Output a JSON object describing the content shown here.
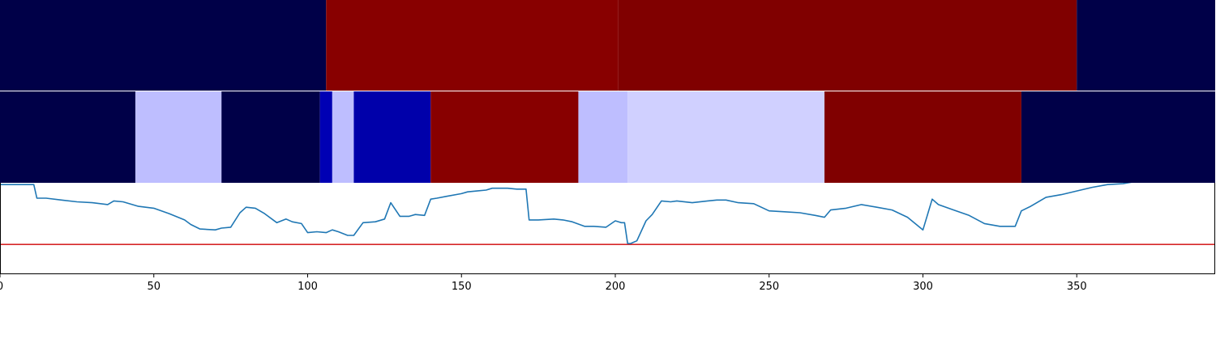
{
  "chart_data": {
    "type": "heatmap",
    "title": "",
    "xlabel": "",
    "ylabel": "",
    "xlim": [
      0,
      395
    ],
    "xticks": [
      0,
      50,
      100,
      150,
      200,
      250,
      300,
      350
    ],
    "xtick_labels": [
      "0",
      "50",
      "100",
      "150",
      "200",
      "250",
      "300",
      "350"
    ],
    "grid": false,
    "rows": [
      {
        "segments": [
          {
            "start": 0,
            "end": 106,
            "color": "#000048"
          },
          {
            "start": 106,
            "end": 201,
            "color": "#880000"
          },
          {
            "start": 201,
            "end": 350,
            "color": "#800000"
          },
          {
            "start": 350,
            "end": 395,
            "color": "#000048"
          }
        ]
      },
      {
        "segments": [
          {
            "start": 0,
            "end": 44,
            "color": "#000048"
          },
          {
            "start": 44,
            "end": 72,
            "color": "#bebeff"
          },
          {
            "start": 72,
            "end": 104,
            "color": "#000048"
          },
          {
            "start": 104,
            "end": 108,
            "color": "#0000b4"
          },
          {
            "start": 108,
            "end": 115,
            "color": "#bebeff"
          },
          {
            "start": 115,
            "end": 140,
            "color": "#0000aa"
          },
          {
            "start": 140,
            "end": 188,
            "color": "#880000"
          },
          {
            "start": 188,
            "end": 204,
            "color": "#bebeff"
          },
          {
            "start": 204,
            "end": 268,
            "color": "#d0d0ff"
          },
          {
            "start": 268,
            "end": 332,
            "color": "#800000"
          },
          {
            "start": 332,
            "end": 395,
            "color": "#000048"
          }
        ]
      }
    ],
    "series": [
      {
        "color": "#1f77b4",
        "x": [
          0,
          5,
          11,
          12,
          15,
          20,
          25,
          30,
          35,
          37,
          40,
          45,
          50,
          55,
          60,
          62,
          65,
          70,
          72,
          75,
          78,
          80,
          83,
          86,
          90,
          93,
          95,
          98,
          100,
          103,
          106,
          108,
          110,
          113,
          115,
          118,
          122,
          125,
          127,
          130,
          133,
          135,
          138,
          140,
          142,
          145,
          150,
          152,
          155,
          158,
          160,
          165,
          168,
          171,
          172,
          175,
          180,
          183,
          186,
          190,
          193,
          197,
          200,
          202,
          203,
          204,
          205,
          207,
          210,
          212,
          215,
          218,
          220,
          225,
          230,
          233,
          236,
          240,
          245,
          250,
          255,
          260,
          265,
          268,
          270,
          275,
          280,
          285,
          290,
          295,
          300,
          303,
          305,
          310,
          315,
          320,
          325,
          330,
          332,
          335,
          340,
          345,
          350,
          355,
          360,
          365,
          370,
          375,
          380,
          385,
          390,
          395
        ],
        "y": [
          0.98,
          0.98,
          0.98,
          0.83,
          0.83,
          0.81,
          0.79,
          0.78,
          0.76,
          0.8,
          0.79,
          0.74,
          0.72,
          0.66,
          0.59,
          0.54,
          0.49,
          0.48,
          0.5,
          0.51,
          0.67,
          0.73,
          0.72,
          0.66,
          0.56,
          0.6,
          0.57,
          0.55,
          0.45,
          0.46,
          0.45,
          0.48,
          0.46,
          0.42,
          0.42,
          0.56,
          0.57,
          0.6,
          0.78,
          0.63,
          0.63,
          0.65,
          0.64,
          0.82,
          0.83,
          0.85,
          0.88,
          0.9,
          0.91,
          0.92,
          0.94,
          0.94,
          0.93,
          0.93,
          0.59,
          0.59,
          0.6,
          0.59,
          0.57,
          0.52,
          0.52,
          0.51,
          0.58,
          0.56,
          0.56,
          0.33,
          0.33,
          0.36,
          0.58,
          0.65,
          0.8,
          0.79,
          0.8,
          0.78,
          0.8,
          0.81,
          0.81,
          0.78,
          0.77,
          0.69,
          0.68,
          0.67,
          0.64,
          0.62,
          0.7,
          0.72,
          0.76,
          0.73,
          0.7,
          0.62,
          0.48,
          0.82,
          0.76,
          0.7,
          0.64,
          0.55,
          0.52,
          0.52,
          0.69,
          0.74,
          0.84,
          0.87,
          0.91,
          0.95,
          0.98,
          0.99,
          1.02,
          1.04,
          1.06,
          1.08,
          1.1,
          1.12
        ]
      }
    ],
    "hline": {
      "y": 0.32,
      "color": "#d62728"
    },
    "ylim": [
      0,
      1
    ]
  }
}
